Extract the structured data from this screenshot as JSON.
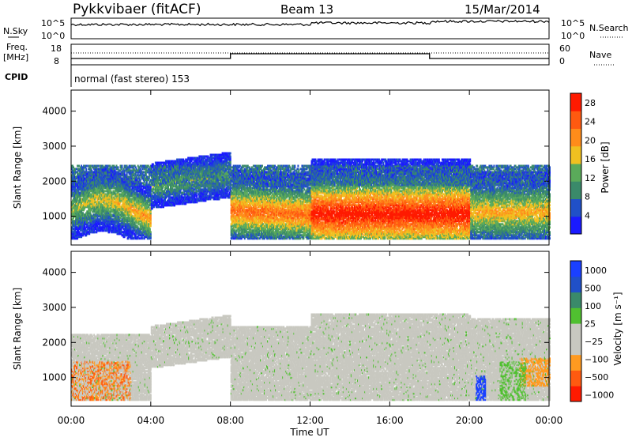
{
  "header": {
    "station": "Pykkvibaer (fitACF)",
    "beam": "Beam 13",
    "date": "15/Mar/2014"
  },
  "top_panels": {
    "nsky_label": "N.Sky",
    "nsearch_label": "N.Search",
    "noise_ticks": [
      "10^5",
      "10^0"
    ],
    "noise_ticks_right": [
      "10^5",
      "10^0"
    ],
    "freq_label_1": "Freq.",
    "freq_label_2": "[MHz]",
    "freq_ticks": [
      "18",
      "8"
    ],
    "nave_label": "Nave",
    "nave_ticks": [
      "60",
      "0"
    ],
    "cpid_label": "CPID",
    "cpid_text": "normal (fast stereo) 153"
  },
  "colors": {
    "power_scale": [
      "#1a1aff",
      "#2050c8",
      "#3a8a6a",
      "#5aaa5a",
      "#f0c020",
      "#ff8c1a",
      "#ff5a10",
      "#ff1a00"
    ],
    "velocity_scale": [
      "#ff1a00",
      "#ff5a10",
      "#ff9a20",
      "#c8c8c0",
      "#c8c8c0",
      "#50c030",
      "#3a8a6a",
      "#2050c8",
      "#1a40ff"
    ]
  },
  "chart_data": [
    {
      "type": "heatmap",
      "name": "power",
      "ylabel": "Slant Range [km]",
      "yticks": [
        1000,
        2000,
        3000,
        4000
      ],
      "ylim": [
        180,
        4600
      ],
      "colorbar_label": "Power [dB]",
      "colorbar_ticks": [
        "4",
        "8",
        "12",
        "16",
        "20",
        "24",
        "28"
      ],
      "colorbar_range": [
        0,
        30
      ]
    },
    {
      "type": "heatmap",
      "name": "velocity",
      "ylabel": "Slant Range [km]",
      "yticks": [
        1000,
        2000,
        3000,
        4000
      ],
      "ylim": [
        180,
        4600
      ],
      "colorbar_label": "Velocity [m s⁻¹]",
      "colorbar_ticks": [
        "1000",
        "500",
        "100",
        "25",
        "−25",
        "−100",
        "−500",
        "−1000"
      ]
    }
  ],
  "xaxis": {
    "ticks": [
      "00:00",
      "04:00",
      "08:00",
      "12:00",
      "16:00",
      "20:00",
      "00:00"
    ],
    "label": "Time UT"
  }
}
